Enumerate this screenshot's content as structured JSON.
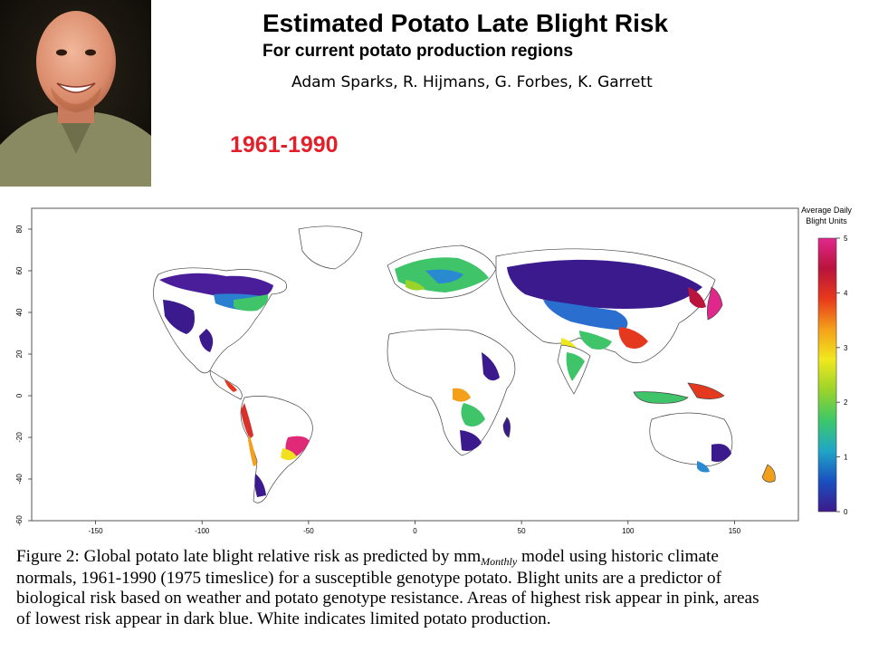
{
  "header": {
    "title": "Estimated Potato Late Blight Risk",
    "subtitle": "For current potato production regions",
    "authors": "Adam Sparks, R. Hijmans, G. Forbes, K. Garrett",
    "period": "1961-1990"
  },
  "photo": {
    "alt": "Portrait photo of presenter"
  },
  "map": {
    "x_ticks": [
      "-150",
      "-100",
      "-50",
      "0",
      "50",
      "100",
      "150"
    ],
    "y_ticks": [
      "80",
      "60",
      "40",
      "20",
      "0",
      "-20",
      "-40",
      "-60"
    ],
    "x_tick_values": [
      -150,
      -100,
      -50,
      0,
      50,
      100,
      150
    ],
    "y_tick_values": [
      80,
      60,
      40,
      20,
      0,
      -20,
      -40,
      -60
    ],
    "xlim": [
      -180,
      180
    ],
    "ylim": [
      -60,
      90
    ],
    "legend": {
      "title_line1": "Average Daily",
      "title_line2": "Blight Units",
      "ticks": [
        "5",
        "4",
        "3",
        "2",
        "1",
        "0"
      ],
      "tick_values": [
        5,
        4,
        3,
        2,
        1,
        0
      ],
      "range": [
        0,
        5
      ],
      "colors": [
        "#3d1a8a",
        "#1a4fc0",
        "#20a6c8",
        "#3cc86a",
        "#9ad32a",
        "#f0e81e",
        "#f4a01a",
        "#e8391c",
        "#b8143c",
        "#e0288c"
      ]
    }
  },
  "caption": {
    "line1_a": "Figure 2:  Global potato late blight relative risk as predicted by mm",
    "line1_sub": "Monthly",
    "line1_b": " model using historic climate",
    "line2": "normals, 1961-1990 (1975 timeslice) for a susceptible genotype potato.  Blight units are a predictor of",
    "line3": "biological risk based on weather and potato genotype resistance. Areas of highest risk appear in pink, areas",
    "line4": "of lowest risk appear in dark blue. White indicates limited potato production."
  }
}
